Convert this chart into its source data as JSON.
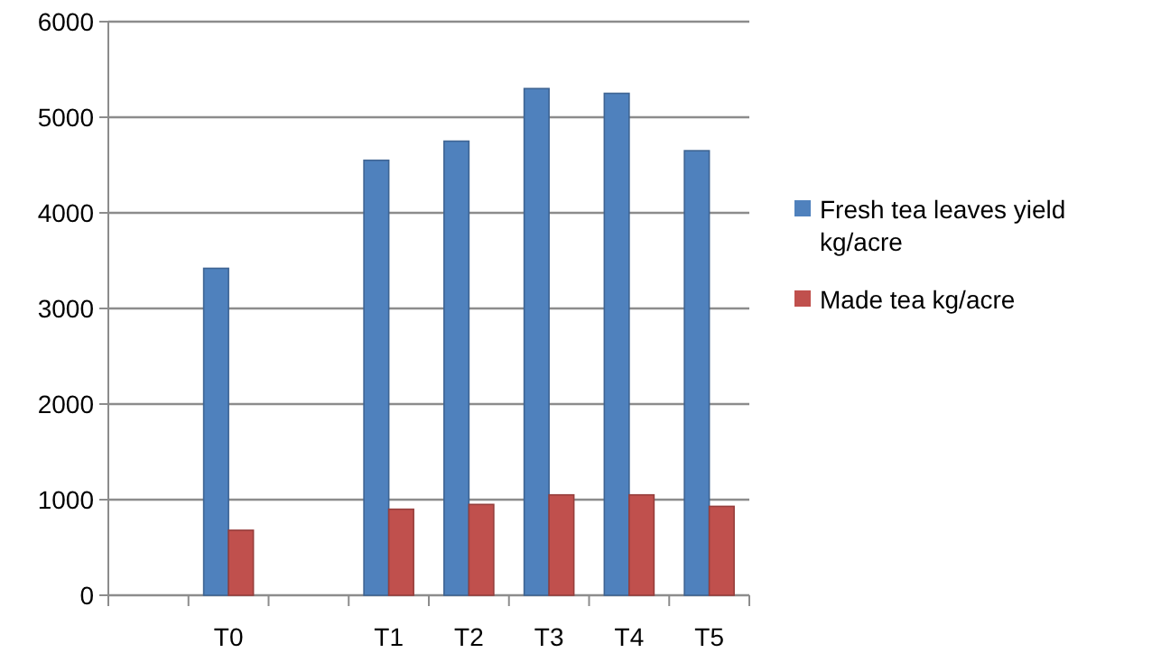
{
  "chart_data": {
    "type": "bar",
    "categories": [
      null,
      "T0",
      null,
      "T1",
      "T2",
      "T3",
      "T4",
      "T5"
    ],
    "series": [
      {
        "name": "Fresh tea leaves yield kg/acre",
        "color": "#4f81bd",
        "values": [
          null,
          3420,
          null,
          4550,
          4750,
          5300,
          5250,
          4650
        ]
      },
      {
        "name": "Made tea kg/acre",
        "color": "#c0504d",
        "values": [
          null,
          680,
          null,
          900,
          950,
          1050,
          1050,
          930
        ]
      }
    ],
    "ylim": [
      0,
      6000
    ],
    "yticks": [
      0,
      1000,
      2000,
      3000,
      4000,
      5000,
      6000
    ],
    "grid": "y",
    "legend": "right"
  }
}
